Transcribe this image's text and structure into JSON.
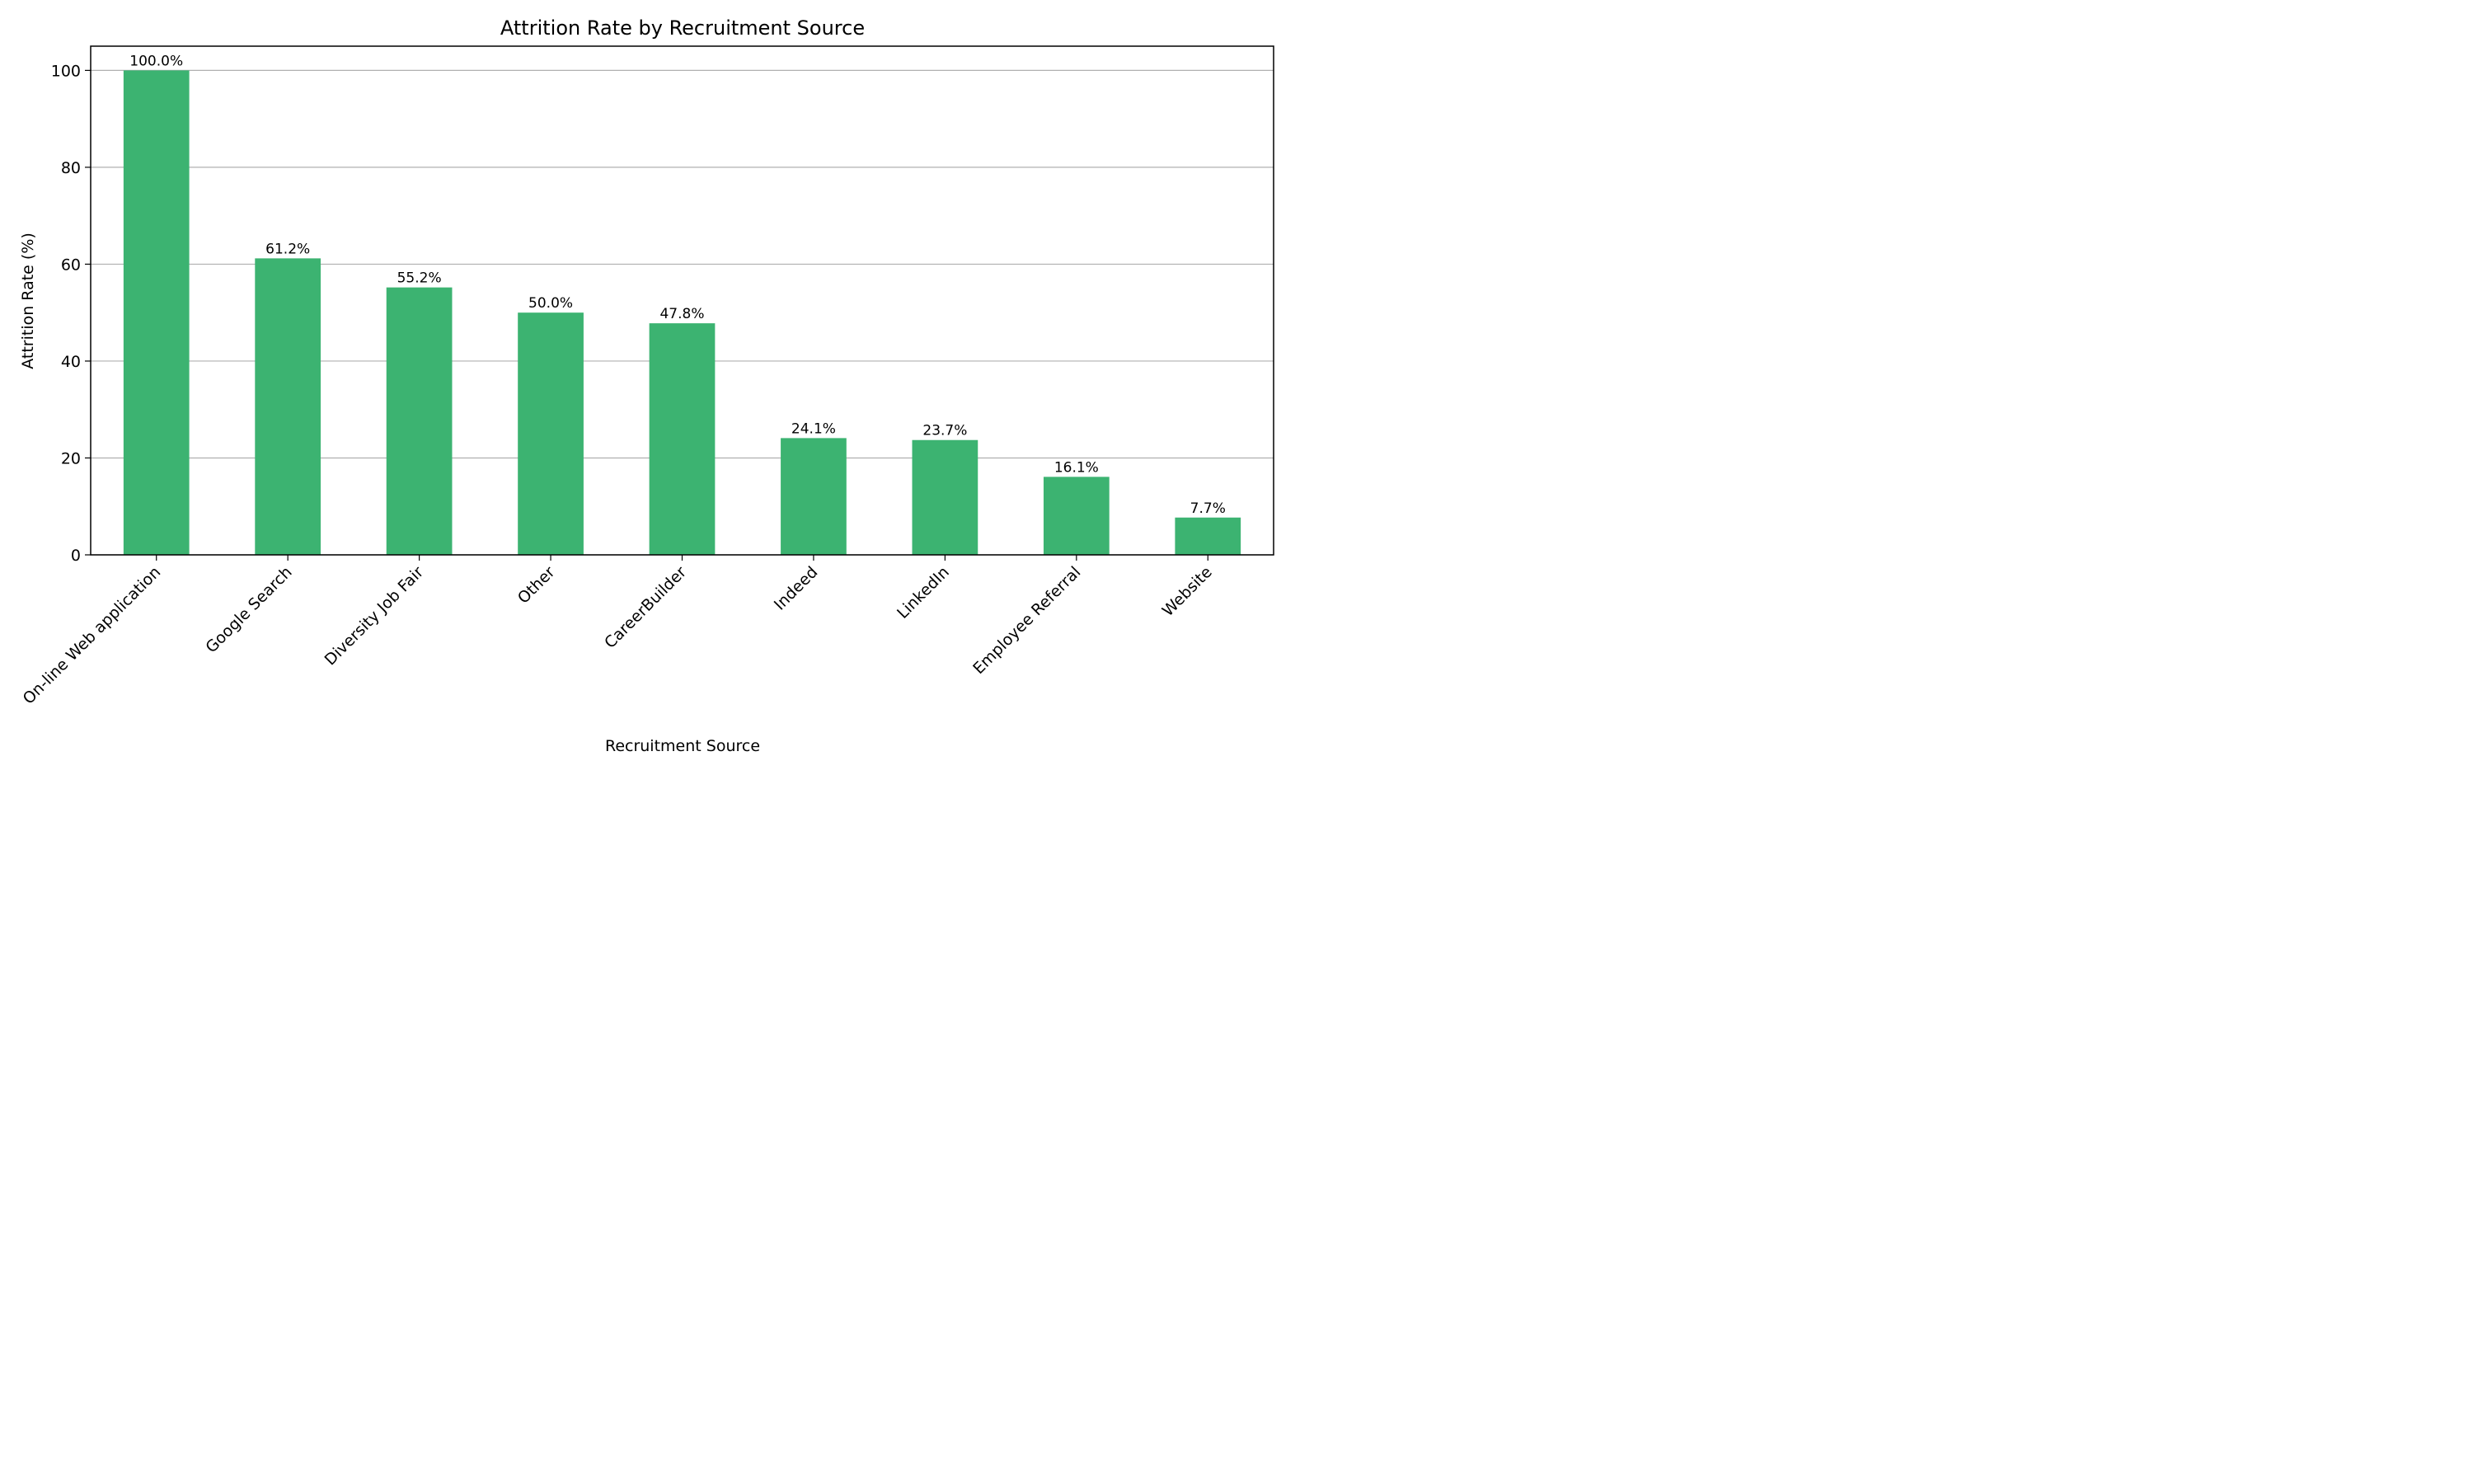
{
  "chart_data": {
    "type": "bar",
    "title": "Attrition Rate by Recruitment Source",
    "xlabel": "Recruitment Source",
    "ylabel": "Attrition Rate (%)",
    "categories": [
      "On-line Web application",
      "Google Search",
      "Diversity Job Fair",
      "Other",
      "CareerBuilder",
      "Indeed",
      "LinkedIn",
      "Employee Referral",
      "Website"
    ],
    "values": [
      100.0,
      61.2,
      55.2,
      50.0,
      47.8,
      24.1,
      23.7,
      16.1,
      7.7
    ],
    "value_labels": [
      "100.0%",
      "61.2%",
      "55.2%",
      "50.0%",
      "47.8%",
      "24.1%",
      "23.7%",
      "16.1%",
      "7.7%"
    ],
    "ylim": [
      0,
      105
    ],
    "yticks": [
      0,
      20,
      40,
      60,
      80,
      100
    ],
    "grid": "y",
    "legend": "none",
    "bar_color": "#3cb371"
  }
}
